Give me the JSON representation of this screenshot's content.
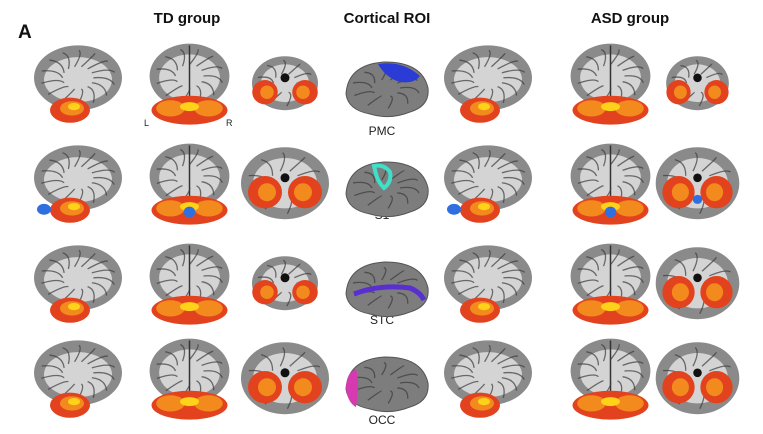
{
  "figure": {
    "panel_label": "A",
    "headers": {
      "td_group": "TD group",
      "cortical_roi": "Cortical ROI",
      "asd_group": "ASD group"
    },
    "orientation": {
      "left": "L",
      "right": "R"
    },
    "rows": [
      {
        "roi": "PMC",
        "roi_color": "#2a3bd6"
      },
      {
        "roi": "S1",
        "roi_color": "#3fe0c8"
      },
      {
        "roi": "STC",
        "roi_color": "#5a2fd0"
      },
      {
        "roi": "OCC",
        "roi_color": "#d63ab0"
      }
    ],
    "colors": {
      "hot_dark": "#e2431e",
      "hot_mid": "#f28a1d",
      "hot_bright": "#ffd21a",
      "cool": "#2f6fe0",
      "gray_matter": "#8a8a8a",
      "white_matter": "#d4d4d4"
    }
  }
}
